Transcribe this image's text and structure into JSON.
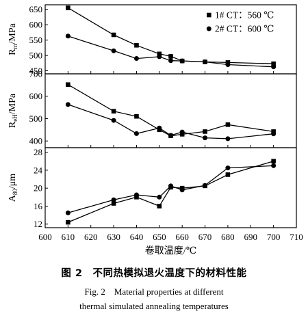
{
  "figure": {
    "caption_cn": "图 2　不同热模拟退火温度下的材料性能",
    "caption_en_line1": "Fig. 2　Material properties at different",
    "caption_en_line2": "thermal simulated annealing temperatures"
  },
  "chart_data": {
    "type": "line",
    "layout": "stacked-panels-shared-x",
    "xlabel": "卷取温度/℃",
    "xlim": [
      600,
      710
    ],
    "xticks": [
      600,
      610,
      620,
      630,
      640,
      650,
      660,
      670,
      680,
      690,
      700,
      710
    ],
    "legend": {
      "placement": "top-right",
      "entries": [
        {
          "label": "1# CT：560 ℃",
          "marker": "square"
        },
        {
          "label": "2# CT：600 ℃",
          "marker": "circle"
        }
      ]
    },
    "panels": [
      {
        "id": "rm",
        "ylabel_main": "R",
        "ylabel_sub": "m",
        "ylabel_unit": "/MPa",
        "ylim": [
          440,
          665
        ],
        "yticks": [
          450,
          500,
          550,
          600,
          650
        ],
        "series": [
          {
            "name": "1# CT：560 ℃",
            "marker": "square",
            "x": [
              610,
              630,
              640,
              650,
              655,
              660,
              670,
              680,
              700
            ],
            "y": [
              655,
              567,
              533,
              505,
              497,
              482,
              479,
              477,
              473
            ]
          },
          {
            "name": "2# CT：600 ℃",
            "marker": "circle",
            "x": [
              610,
              630,
              640,
              650,
              655,
              660,
              670,
              680,
              700
            ],
            "y": [
              563,
              515,
              490,
              496,
              483,
              482,
              479,
              470,
              463
            ]
          }
        ]
      },
      {
        "id": "reh",
        "ylabel_main": "R",
        "ylabel_sub": "eH",
        "ylabel_unit": "/MPa",
        "ylim": [
          370,
          700
        ],
        "yticks": [
          400,
          500,
          600,
          700
        ],
        "series": [
          {
            "name": "1# CT：560 ℃",
            "marker": "square",
            "x": [
              610,
              630,
              640,
              650,
              655,
              660,
              670,
              680,
              700
            ],
            "y": [
              652,
              533,
              510,
              450,
              423,
              430,
              442,
              473,
              442
            ]
          },
          {
            "name": "2# CT：600 ℃",
            "marker": "circle",
            "x": [
              610,
              630,
              640,
              650,
              655,
              660,
              670,
              680,
              700
            ],
            "y": [
              563,
              492,
              433,
              458,
              425,
              440,
              414,
              410,
              432
            ]
          }
        ]
      },
      {
        "id": "a80",
        "ylabel_main": "A",
        "ylabel_sub": "80",
        "ylabel_unit": "/μm",
        "ylim": [
          11.2,
          29
        ],
        "yticks": [
          12,
          16,
          20,
          24,
          28
        ],
        "series": [
          {
            "name": "1# CT：560 ℃",
            "marker": "square",
            "x": [
              610,
              630,
              640,
              650,
              655,
              660,
              670,
              680,
              700
            ],
            "y": [
              12.4,
              16.6,
              18.0,
              16.0,
              20.2,
              20.0,
              20.5,
              23.0,
              26.0
            ]
          },
          {
            "name": "2# CT：600 ℃",
            "marker": "circle",
            "x": [
              610,
              630,
              640,
              650,
              655,
              660,
              670,
              680,
              700
            ],
            "y": [
              14.5,
              17.4,
              18.5,
              18.0,
              20.5,
              19.6,
              20.6,
              24.5,
              25.0
            ]
          }
        ]
      }
    ]
  }
}
